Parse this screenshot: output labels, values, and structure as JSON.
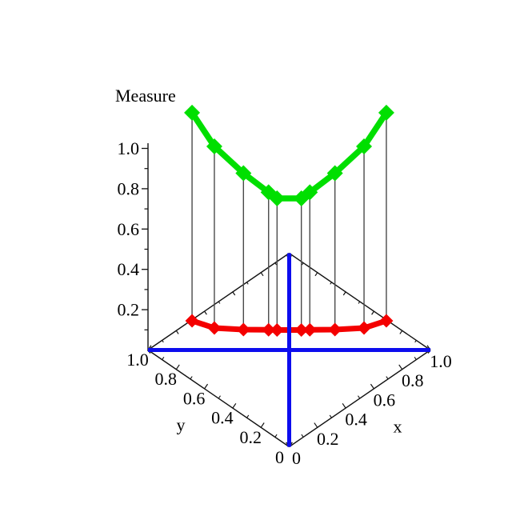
{
  "figure": {
    "background": "#ffffff",
    "description": "3D curve plot of a measure over the unit square anti-diagonal, with projection curve and drop lines"
  },
  "chart_data": {
    "type": "line",
    "subtype": "3d-curves-over-unit-square",
    "title": "Measure",
    "axes": {
      "z": {
        "label": "Measure",
        "range": [
          0,
          1.2
        ],
        "ticks": [
          1.0,
          0.8,
          0.6,
          0.4,
          0.2
        ],
        "tick_labels": [
          "1.0",
          "0.8",
          "0.6",
          "0.4",
          "0.2"
        ],
        "minor_ticks": [
          0.9,
          0.7,
          0.5,
          0.3,
          0.1
        ]
      },
      "x": {
        "label": "x",
        "range": [
          0,
          1
        ],
        "ticks": [
          0,
          0.2,
          0.4,
          0.6,
          0.8,
          1.0
        ],
        "tick_labels": [
          "0",
          "0.2",
          "0.4",
          "0.6",
          "0.8",
          "1.0"
        ],
        "minor_ticks": [
          0.1,
          0.3,
          0.5,
          0.7,
          0.9
        ]
      },
      "y": {
        "label": "y",
        "range": [
          0,
          1
        ],
        "ticks": [
          0,
          0.2,
          0.4,
          0.6,
          0.8,
          1.0
        ],
        "tick_labels": [
          "0",
          "0.2",
          "0.4",
          "0.6",
          "0.8",
          "1.0"
        ],
        "minor_ticks": [
          0.1,
          0.3,
          0.5,
          0.7,
          0.9
        ]
      }
    },
    "colors": {
      "upper_curve": "#00df00",
      "lower_curve": "#f40000",
      "diagonals": "#0d0dee",
      "axis": "#111111",
      "drop_lines": "#4a4a4a",
      "background": "#ffffff"
    },
    "series": [
      {
        "name": "upper measure curve",
        "marker": "diamond",
        "color_key": "upper_curve",
        "points": [
          [
            0.156,
            0.844,
            1.177
          ],
          [
            0.235,
            0.765,
            1.01
          ],
          [
            0.338,
            0.662,
            0.877
          ],
          [
            0.427,
            0.573,
            0.782
          ],
          [
            0.457,
            0.543,
            0.752
          ],
          [
            0.543,
            0.457,
            0.752
          ],
          [
            0.573,
            0.427,
            0.782
          ],
          [
            0.662,
            0.338,
            0.877
          ],
          [
            0.765,
            0.235,
            1.01
          ],
          [
            0.844,
            0.156,
            1.177
          ]
        ]
      },
      {
        "name": "lower measure curve",
        "marker": "diamond",
        "color_key": "lower_curve",
        "points": [
          [
            0.156,
            0.844,
            0.145
          ],
          [
            0.235,
            0.765,
            0.109
          ],
          [
            0.338,
            0.662,
            0.101
          ],
          [
            0.427,
            0.573,
            0.1
          ],
          [
            0.457,
            0.543,
            0.099
          ],
          [
            0.543,
            0.457,
            0.099
          ],
          [
            0.573,
            0.427,
            0.1
          ],
          [
            0.662,
            0.338,
            0.101
          ],
          [
            0.765,
            0.235,
            0.109
          ],
          [
            0.844,
            0.156,
            0.145
          ]
        ]
      }
    ],
    "base_diagonals": [
      {
        "name": "diagonal x = y",
        "from": [
          0,
          0
        ],
        "to": [
          1,
          1
        ]
      },
      {
        "name": "diagonal x + y = 1",
        "from": [
          0,
          1
        ],
        "to": [
          1,
          0
        ]
      }
    ],
    "drop_lines": true,
    "legend": {
      "shown": false
    }
  }
}
